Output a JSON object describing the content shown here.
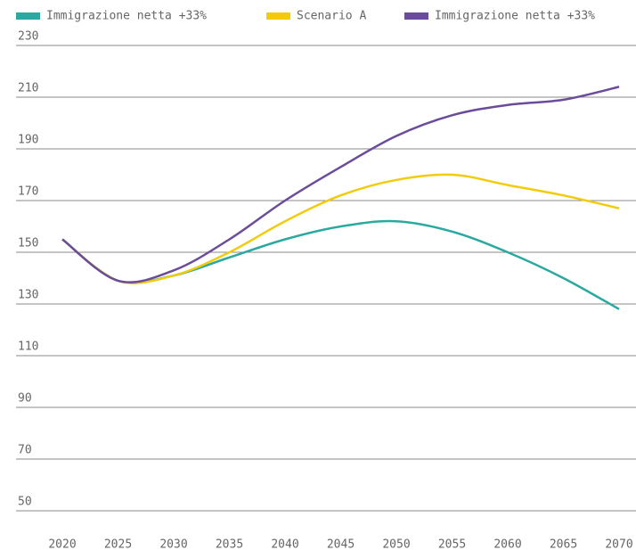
{
  "chart_data": {
    "type": "line",
    "x": [
      2020,
      2025,
      2030,
      2035,
      2040,
      2045,
      2050,
      2055,
      2060,
      2065,
      2070
    ],
    "series": [
      {
        "name": "Immigrazione netta +33%",
        "color": "#2aa9a0",
        "values": [
          155,
          139,
          141,
          148,
          155,
          160,
          162,
          158,
          150,
          140,
          128
        ]
      },
      {
        "name": "Scenario A",
        "color": "#f2cc0c",
        "values": [
          155,
          139,
          141,
          150,
          162,
          172,
          178,
          180,
          176,
          172,
          167
        ]
      },
      {
        "name": "Immigrazione netta +33%",
        "color": "#6b4c9a",
        "values": [
          155,
          139,
          143,
          155,
          170,
          183,
          195,
          203,
          207,
          209,
          214
        ]
      }
    ],
    "xlim": [
      2020,
      2070
    ],
    "xticks": [
      2020,
      2025,
      2030,
      2035,
      2040,
      2045,
      2050,
      2055,
      2060,
      2065,
      2070
    ],
    "ylim": [
      50,
      230
    ],
    "yticks": [
      50,
      70,
      90,
      110,
      130,
      150,
      170,
      190,
      210,
      230
    ],
    "grid": true,
    "legend": "top"
  }
}
